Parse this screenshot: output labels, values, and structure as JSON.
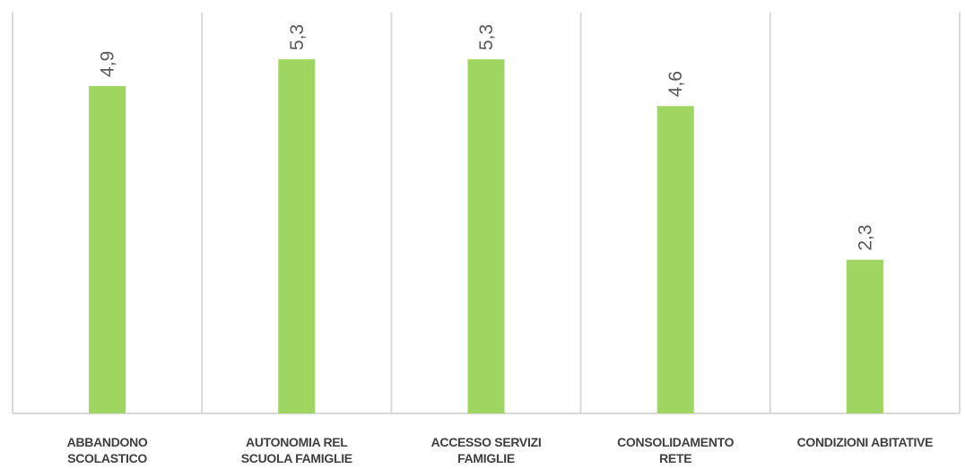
{
  "chart_data": {
    "type": "bar",
    "categories": [
      "ABBANDONO\nSCOLASTICO",
      "AUTONOMIA REL\nSCUOLA FAMIGLIE",
      "ACCESSO SERVIZI\nFAMIGLIE",
      "CONSOLIDAMENTO\nRETE",
      "CONDIZIONI ABITATIVE"
    ],
    "values": [
      4.9,
      5.3,
      5.3,
      4.6,
      2.3
    ],
    "value_labels": [
      "4,9",
      "5,3",
      "5,3",
      "4,6",
      "2,3"
    ],
    "ylim": [
      0,
      6
    ],
    "grid": "vertical separators",
    "data_labels": "rotated above bars",
    "colors": {
      "bar": "#9fd662",
      "grid": "#d9d9d9",
      "label": "#595959"
    }
  }
}
